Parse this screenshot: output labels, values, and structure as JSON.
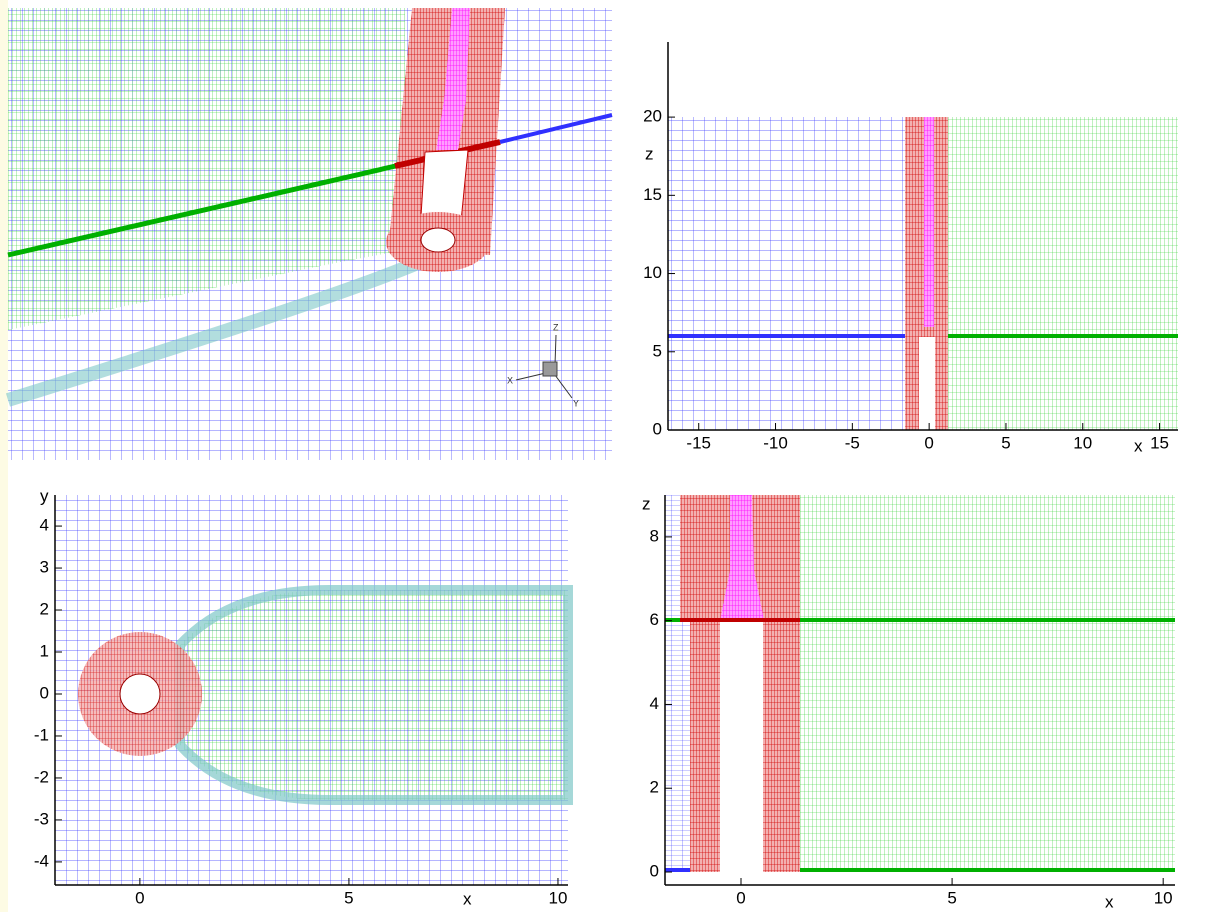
{
  "perspective_view": {
    "triad": [
      "X",
      "Y",
      "Z"
    ]
  },
  "plots": [
    {
      "x_label": "x",
      "y_label": "z",
      "xlim": [
        -17,
        16.2
      ],
      "ylim": [
        0,
        24.8
      ],
      "xticks": [
        -15,
        -10,
        -5,
        0,
        5,
        10,
        15
      ],
      "yticks": [
        0,
        5,
        10,
        15,
        20
      ]
    },
    {
      "x_label": "x",
      "y_label": "y",
      "xlim": [
        -2.03,
        10.24
      ],
      "ylim": [
        -4.55,
        4.74
      ],
      "xticks": [
        0,
        5,
        10
      ],
      "yticks": [
        -4,
        -3,
        -2,
        -1,
        0,
        1,
        2,
        3,
        4
      ]
    },
    {
      "x_label": "x",
      "y_label": "z",
      "xlim": [
        -1.8,
        10.28
      ],
      "ylim": [
        -0.31,
        9.0
      ],
      "xticks": [
        0,
        5,
        10
      ],
      "yticks": [
        0,
        2,
        4,
        6,
        8
      ]
    }
  ]
}
